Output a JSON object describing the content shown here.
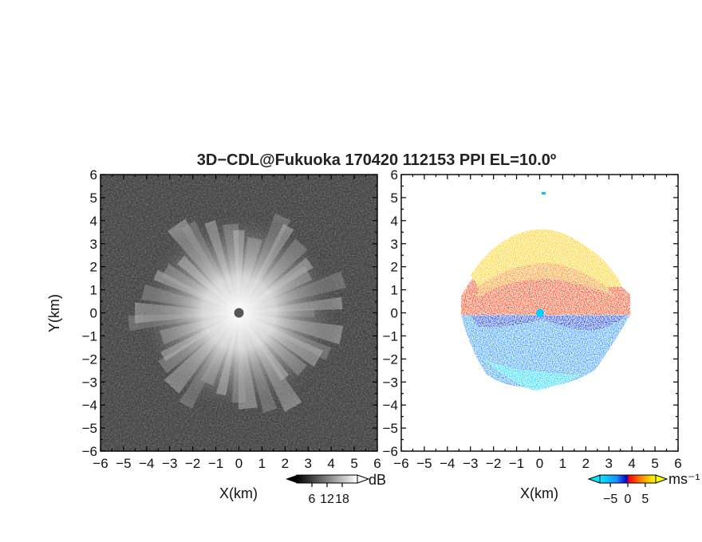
{
  "title": "3D−CDL@Fukuoka 170420 112153 PPI EL=10.0º",
  "chart_data": [
    {
      "type": "heatmap",
      "name": "left-panel-intensity",
      "xlabel": "X(km)",
      "ylabel": "Y(km)",
      "xlim": [
        -6,
        6
      ],
      "ylim": [
        -6,
        6
      ],
      "xticks": [
        -6,
        -5,
        -4,
        -3,
        -2,
        -1,
        0,
        1,
        2,
        3,
        4,
        5,
        6
      ],
      "yticks": [
        6,
        5,
        4,
        3,
        2,
        1,
        0,
        -1,
        -2,
        -3,
        -4,
        -5,
        -6
      ],
      "xtick_labels": [
        "−6",
        "−5",
        "−4",
        "−3",
        "−2",
        "−1",
        "0",
        "1",
        "2",
        "3",
        "4",
        "5",
        "6"
      ],
      "ytick_labels": [
        "6",
        "5",
        "4",
        "3",
        "2",
        "1",
        "0",
        "−1",
        "−2",
        "−3",
        "−4",
        "−5",
        "−6"
      ],
      "colorbar": {
        "unit": "dB",
        "ticks": [
          6,
          12,
          18
        ],
        "tick_labels": [
          "6",
          "12",
          "18"
        ],
        "range": [
          0,
          24
        ],
        "colors": [
          "#000000",
          "#ffffff"
        ]
      }
    },
    {
      "type": "heatmap",
      "name": "right-panel-velocity",
      "xlabel": "X(km)",
      "ylabel": "",
      "xlim": [
        -6,
        6
      ],
      "ylim": [
        -6,
        6
      ],
      "xticks": [
        -6,
        -5,
        -4,
        -3,
        -2,
        -1,
        0,
        1,
        2,
        3,
        4,
        5,
        6
      ],
      "yticks": [
        6,
        5,
        4,
        3,
        2,
        1,
        0,
        -1,
        -2,
        -3,
        -4,
        -5,
        -6
      ],
      "xtick_labels": [
        "−6",
        "−5",
        "−4",
        "−3",
        "−2",
        "−1",
        "0",
        "1",
        "2",
        "3",
        "4",
        "5",
        "6"
      ],
      "ytick_labels": [
        "6",
        "5",
        "4",
        "3",
        "2",
        "1",
        "0",
        "−1",
        "−2",
        "−3",
        "−4",
        "−5",
        "−6"
      ],
      "colorbar": {
        "unit": "ms⁻¹",
        "ticks": [
          -5,
          0,
          5
        ],
        "tick_labels": [
          "−5",
          "0",
          "5"
        ],
        "range": [
          -8,
          8
        ],
        "colors": [
          "#00e0ff",
          "#1e90ff",
          "#0000d0",
          "#ff0000",
          "#ff8000",
          "#ffff00"
        ]
      }
    }
  ]
}
